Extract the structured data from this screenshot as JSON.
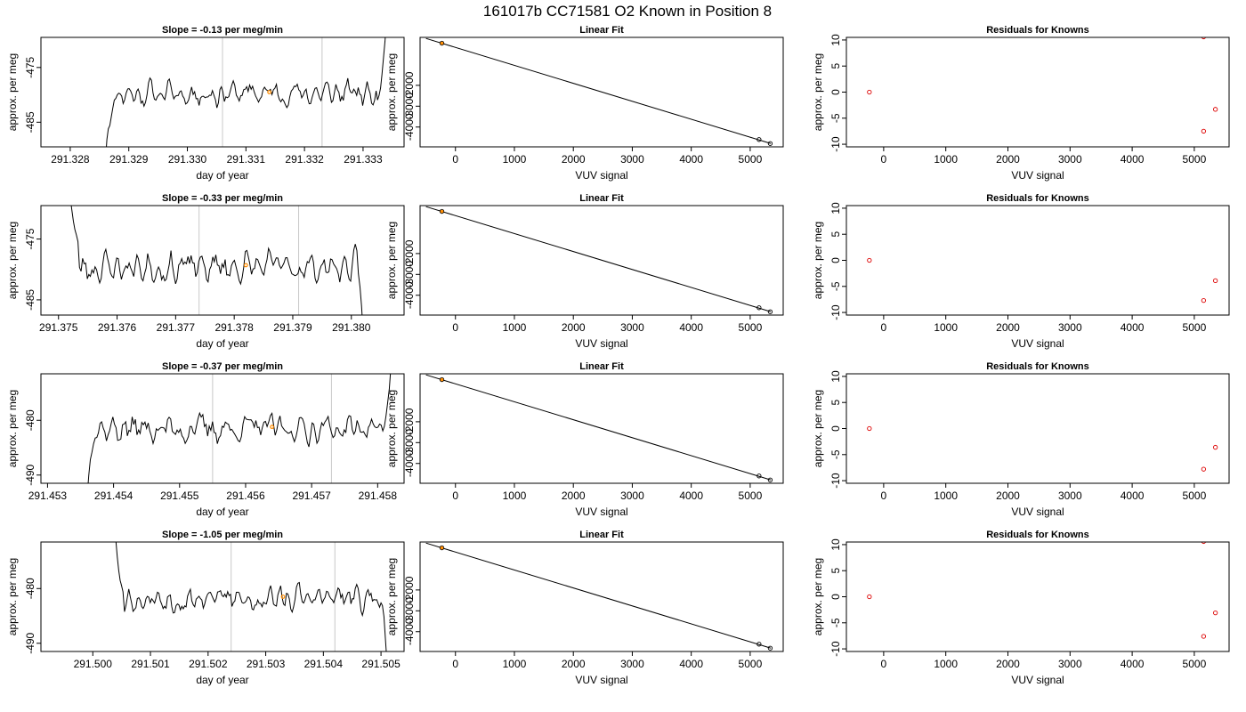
{
  "figure": {
    "title": "161017b      CC71581    O2 Known in Position  8"
  },
  "chart_data": [
    {
      "type": "line",
      "row": 0,
      "col": 0,
      "title": "Slope =  -0.13  per meg/min",
      "xlabel": "day of year",
      "ylabel": "approx. per meg",
      "xlim": [
        291.3275,
        291.3337
      ],
      "ylim": [
        -489.5,
        -469.5
      ],
      "xticks": [
        291.328,
        291.329,
        291.33,
        291.331,
        291.332,
        291.333
      ],
      "xtick_labels": [
        "291.328",
        "291.329",
        "291.330",
        "291.331",
        "291.332",
        "291.333"
      ],
      "yticks": [
        -485,
        -475
      ],
      "ytick_labels": [
        "-485",
        "-475"
      ],
      "vlines": [
        291.3306,
        291.3323
      ],
      "marker": {
        "x": 291.3314,
        "y": -479.5
      },
      "series": [
        {
          "start": 291.3286,
          "end": 291.3334,
          "base": -479.7,
          "head": [
            -492,
            -488,
            -486,
            -485.5,
            -484,
            -482.5,
            -481,
            -480.5
          ],
          "tail": [
            -481,
            -480,
            -478.5,
            -476,
            -473,
            -470,
            -466
          ],
          "amp": 1.4,
          "seed": 11
        }
      ]
    },
    {
      "type": "line",
      "row": 1,
      "col": 0,
      "title": "Slope =  -0.33  per meg/min",
      "xlabel": "day of year",
      "ylabel": "approx. per meg",
      "xlim": [
        291.3747,
        291.3809
      ],
      "ylim": [
        -487.5,
        -469.5
      ],
      "xticks": [
        291.375,
        291.376,
        291.377,
        291.378,
        291.379,
        291.38
      ],
      "xtick_labels": [
        "291.375",
        "291.376",
        "291.377",
        "291.378",
        "291.379",
        "291.380"
      ],
      "yticks": [
        -485,
        -475
      ],
      "ytick_labels": [
        "-485",
        "-475"
      ],
      "vlines": [
        291.3774,
        291.3791
      ],
      "marker": {
        "x": 291.3782,
        "y": -479.3
      },
      "series": [
        {
          "start": 291.3752,
          "end": 291.3802,
          "base": -479.6,
          "head": [
            -468,
            -470,
            -472,
            -473.5,
            -474.5,
            -475.5
          ],
          "tail": [
            -481,
            -483,
            -486,
            -490
          ],
          "amp": 1.5,
          "seed": 23
        }
      ]
    },
    {
      "type": "line",
      "row": 2,
      "col": 0,
      "title": "Slope =  -0.37  per meg/min",
      "xlabel": "day of year",
      "ylabel": "approx. per meg",
      "xlim": [
        291.4529,
        291.4584
      ],
      "ylim": [
        -491.5,
        -471.5
      ],
      "xticks": [
        291.453,
        291.454,
        291.455,
        291.456,
        291.457,
        291.458
      ],
      "xtick_labels": [
        "291.453",
        "291.454",
        "291.455",
        "291.456",
        "291.457",
        "291.458"
      ],
      "yticks": [
        -490,
        -480
      ],
      "ytick_labels": [
        "-490",
        "-480"
      ],
      "vlines": [
        291.4555,
        291.4573
      ],
      "marker": {
        "x": 291.4564,
        "y": -481.2
      },
      "series": [
        {
          "start": 291.4536,
          "end": 291.4582,
          "base": -481.5,
          "head": [
            -494,
            -490,
            -487,
            -485.5,
            -484,
            -483
          ],
          "tail": [
            -481,
            -479,
            -476.5,
            -474,
            -470
          ],
          "amp": 1.6,
          "seed": 37
        }
      ]
    },
    {
      "type": "line",
      "row": 3,
      "col": 0,
      "title": "Slope =  -1.05  per meg/min",
      "xlabel": "day of year",
      "ylabel": "approx. per meg",
      "xlim": [
        291.4991,
        291.5054
      ],
      "ylim": [
        -491.5,
        -471.5
      ],
      "xticks": [
        291.5,
        291.501,
        291.502,
        291.503,
        291.504,
        291.505
      ],
      "xtick_labels": [
        "291.500",
        "291.501",
        "291.502",
        "291.503",
        "291.504",
        "291.505"
      ],
      "yticks": [
        -490,
        -480
      ],
      "ytick_labels": [
        "-490",
        "-480"
      ],
      "vlines": [
        291.5024,
        291.5042
      ],
      "marker": {
        "x": 291.5033,
        "y": -481.5
      },
      "series": [
        {
          "start": 291.5004,
          "end": 291.5051,
          "base": -481.8,
          "head": [
            -471,
            -474,
            -476.5,
            -478.5,
            -479.5,
            -480.5
          ],
          "tail": [
            -483,
            -485,
            -489,
            -493
          ],
          "amp": 1.4,
          "seed": 53
        }
      ]
    },
    {
      "type": "scatter",
      "row": 0,
      "col": 1,
      "title": "Linear Fit",
      "xlabel": "VUV signal",
      "ylabel": "approx. per meg",
      "xlim": [
        -600,
        5560
      ],
      "ylim": [
        -4950,
        300
      ],
      "xticks": [
        0,
        1000,
        2000,
        3000,
        4000,
        5000
      ],
      "xtick_labels": [
        "0",
        "1000",
        "2000",
        "3000",
        "4000",
        "5000"
      ],
      "yticks": [
        -4000,
        -3000,
        -2000
      ],
      "ytick_labels": [
        "-4000",
        "-3000",
        "-2000"
      ],
      "fit_line": {
        "x": [
          -500,
          5350
        ],
        "y": [
          250,
          -4790
        ]
      },
      "points": {
        "x": [
          -230,
          5150,
          5340
        ],
        "y": [
          20,
          -4600,
          -4790
        ]
      },
      "highlight": {
        "x": -230,
        "y": 20
      }
    },
    {
      "type": "scatter",
      "row": 1,
      "col": 1,
      "title": "Linear Fit",
      "xlabel": "VUV signal",
      "ylabel": "approx. per meg",
      "xlim": [
        -600,
        5560
      ],
      "ylim": [
        -4950,
        300
      ],
      "xticks": [
        0,
        1000,
        2000,
        3000,
        4000,
        5000
      ],
      "xtick_labels": [
        "0",
        "1000",
        "2000",
        "3000",
        "4000",
        "5000"
      ],
      "yticks": [
        -4000,
        -3000,
        -2000
      ],
      "ytick_labels": [
        "-4000",
        "-3000",
        "-2000"
      ],
      "fit_line": {
        "x": [
          -500,
          5350
        ],
        "y": [
          250,
          -4790
        ]
      },
      "points": {
        "x": [
          -230,
          5150,
          5340
        ],
        "y": [
          20,
          -4600,
          -4790
        ]
      },
      "highlight": {
        "x": -230,
        "y": 20
      }
    },
    {
      "type": "scatter",
      "row": 2,
      "col": 1,
      "title": "Linear Fit",
      "xlabel": "VUV signal",
      "ylabel": "approx. per meg",
      "xlim": [
        -600,
        5560
      ],
      "ylim": [
        -4950,
        300
      ],
      "xticks": [
        0,
        1000,
        2000,
        3000,
        4000,
        5000
      ],
      "xtick_labels": [
        "0",
        "1000",
        "2000",
        "3000",
        "4000",
        "5000"
      ],
      "yticks": [
        -4000,
        -3000,
        -2000
      ],
      "ytick_labels": [
        "-4000",
        "-3000",
        "-2000"
      ],
      "fit_line": {
        "x": [
          -500,
          5350
        ],
        "y": [
          250,
          -4790
        ]
      },
      "points": {
        "x": [
          -230,
          5150,
          5340
        ],
        "y": [
          20,
          -4600,
          -4790
        ]
      },
      "highlight": {
        "x": -230,
        "y": 20
      }
    },
    {
      "type": "scatter",
      "row": 3,
      "col": 1,
      "title": "Linear Fit",
      "xlabel": "VUV signal",
      "ylabel": "approx. per meg",
      "xlim": [
        -600,
        5560
      ],
      "ylim": [
        -4950,
        300
      ],
      "xticks": [
        0,
        1000,
        2000,
        3000,
        4000,
        5000
      ],
      "xtick_labels": [
        "0",
        "1000",
        "2000",
        "3000",
        "4000",
        "5000"
      ],
      "yticks": [
        -4000,
        -3000,
        -2000
      ],
      "ytick_labels": [
        "-4000",
        "-3000",
        "-2000"
      ],
      "fit_line": {
        "x": [
          -500,
          5350
        ],
        "y": [
          250,
          -4790
        ]
      },
      "points": {
        "x": [
          -230,
          5150,
          5340
        ],
        "y": [
          20,
          -4600,
          -4790
        ]
      },
      "highlight": {
        "x": -230,
        "y": 20
      }
    },
    {
      "type": "scatter",
      "row": 0,
      "col": 2,
      "title": "Residuals for Knowns",
      "xlabel": "VUV signal",
      "ylabel": "approx. per meg",
      "xlim": [
        -600,
        5560
      ],
      "ylim": [
        -10.5,
        10.5
      ],
      "xticks": [
        0,
        1000,
        2000,
        3000,
        4000,
        5000
      ],
      "xtick_labels": [
        "0",
        "1000",
        "2000",
        "3000",
        "4000",
        "5000"
      ],
      "yticks": [
        -10,
        -5,
        0,
        5,
        10
      ],
      "ytick_labels": [
        "-10",
        "-5",
        "0",
        "5",
        "10"
      ],
      "points": {
        "x": [
          -230,
          5150,
          5340,
          5150
        ],
        "y": [
          0,
          -7.5,
          -3.3,
          10.6
        ]
      }
    },
    {
      "type": "scatter",
      "row": 1,
      "col": 2,
      "title": "Residuals for Knowns",
      "xlabel": "VUV signal",
      "ylabel": "approx. per meg",
      "xlim": [
        -600,
        5560
      ],
      "ylim": [
        -10.5,
        10.5
      ],
      "xticks": [
        0,
        1000,
        2000,
        3000,
        4000,
        5000
      ],
      "xtick_labels": [
        "0",
        "1000",
        "2000",
        "3000",
        "4000",
        "5000"
      ],
      "yticks": [
        -10,
        -5,
        0,
        5,
        10
      ],
      "ytick_labels": [
        "-10",
        "-5",
        "0",
        "5",
        "10"
      ],
      "points": {
        "x": [
          -230,
          5150,
          5340
        ],
        "y": [
          0,
          -7.7,
          -3.9
        ]
      }
    },
    {
      "type": "scatter",
      "row": 2,
      "col": 2,
      "title": "Residuals for Knowns",
      "xlabel": "VUV signal",
      "ylabel": "approx. per meg",
      "xlim": [
        -600,
        5560
      ],
      "ylim": [
        -10.5,
        10.5
      ],
      "xticks": [
        0,
        1000,
        2000,
        3000,
        4000,
        5000
      ],
      "xtick_labels": [
        "0",
        "1000",
        "2000",
        "3000",
        "4000",
        "5000"
      ],
      "yticks": [
        -10,
        -5,
        0,
        5,
        10
      ],
      "ytick_labels": [
        "-10",
        "-5",
        "0",
        "5",
        "10"
      ],
      "points": {
        "x": [
          -230,
          5150,
          5340
        ],
        "y": [
          0,
          -7.8,
          -3.6
        ]
      }
    },
    {
      "type": "scatter",
      "row": 3,
      "col": 2,
      "title": "Residuals for Knowns",
      "xlabel": "VUV signal",
      "ylabel": "approx. per meg",
      "xlim": [
        -600,
        5560
      ],
      "ylim": [
        -10.5,
        10.5
      ],
      "xticks": [
        0,
        1000,
        2000,
        3000,
        4000,
        5000
      ],
      "xtick_labels": [
        "0",
        "1000",
        "2000",
        "3000",
        "4000",
        "5000"
      ],
      "yticks": [
        -10,
        -5,
        0,
        5,
        10
      ],
      "ytick_labels": [
        "-10",
        "-5",
        "0",
        "5",
        "10"
      ],
      "points": {
        "x": [
          -230,
          5150,
          5340,
          5150
        ],
        "y": [
          0,
          -7.6,
          -3.1,
          10.6
        ]
      }
    }
  ]
}
